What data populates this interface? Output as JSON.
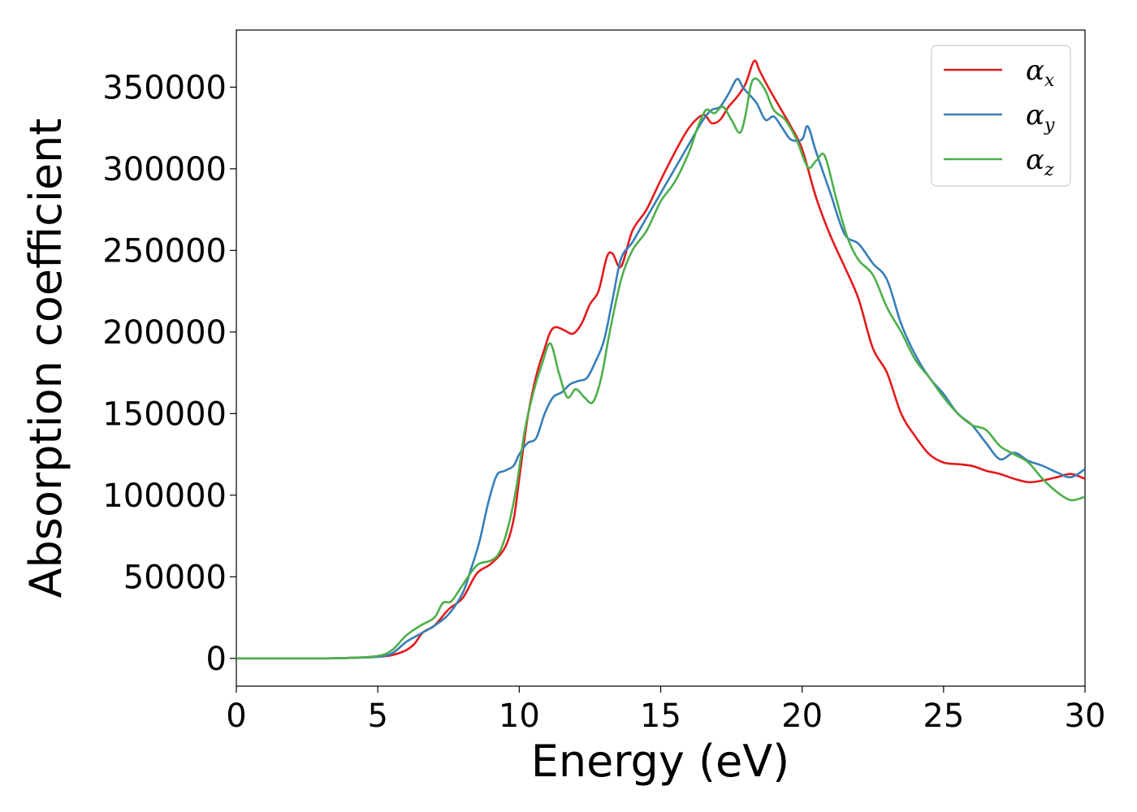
{
  "chart_data": {
    "type": "line",
    "title": "",
    "xlabel": "Energy (eV)",
    "ylabel": "Absorption coefficient",
    "xlim": [
      0,
      30
    ],
    "ylim": [
      -17000,
      385000
    ],
    "xticks": [
      0,
      5,
      10,
      15,
      20,
      25,
      30
    ],
    "yticks": [
      0,
      50000,
      100000,
      150000,
      200000,
      250000,
      300000,
      350000
    ],
    "grid": false,
    "legend": "top-right",
    "series": [
      {
        "name": "α_x",
        "name_base": "α",
        "name_sub": "x",
        "color": "#e41a1c",
        "x": [
          0,
          3,
          4,
          5,
          5.5,
          6,
          6.3,
          6.6,
          7,
          7.5,
          8,
          8.5,
          9,
          9.5,
          9.8,
          10,
          10.3,
          10.6,
          10.9,
          11.1,
          11.3,
          11.6,
          11.9,
          12.2,
          12.5,
          12.8,
          13.1,
          13.3,
          13.6,
          14,
          14.5,
          15,
          15.5,
          16,
          16.5,
          16.8,
          17.1,
          17.4,
          17.7,
          18,
          18.3,
          18.5,
          18.8,
          19.2,
          19.6,
          20,
          20.5,
          21,
          21.5,
          22,
          22.5,
          23,
          23.5,
          24,
          24.5,
          25,
          25.5,
          26,
          26.5,
          27,
          27.5,
          28,
          28.5,
          29,
          29.5,
          30
        ],
        "y": [
          0,
          0,
          300,
          1000,
          2000,
          5000,
          9000,
          16000,
          20000,
          30000,
          37000,
          52000,
          58000,
          68000,
          85000,
          110000,
          148000,
          173000,
          190000,
          200000,
          203000,
          201000,
          199000,
          205000,
          217000,
          225000,
          246000,
          248000,
          240000,
          262000,
          275000,
          293000,
          310000,
          325000,
          333000,
          328000,
          330000,
          338000,
          344000,
          352000,
          366000,
          360000,
          350000,
          338000,
          326000,
          312000,
          282000,
          259000,
          240000,
          220000,
          190000,
          175000,
          150000,
          136000,
          125000,
          120000,
          119000,
          118000,
          115000,
          113000,
          110000,
          108000,
          109000,
          111000,
          113000,
          110000
        ]
      },
      {
        "name": "α_y",
        "name_base": "α",
        "name_sub": "y",
        "color": "#377eb8",
        "x": [
          0,
          3,
          4,
          5,
          5.5,
          6,
          6.5,
          7,
          7.5,
          8,
          8.3,
          8.6,
          8.9,
          9.2,
          9.5,
          9.8,
          10,
          10.3,
          10.6,
          10.9,
          11.2,
          11.5,
          11.8,
          12.1,
          12.4,
          12.7,
          13,
          13.3,
          13.6,
          14,
          14.5,
          15,
          15.5,
          16,
          16.5,
          16.8,
          17.1,
          17.4,
          17.7,
          17.9,
          18.1,
          18.4,
          18.7,
          19,
          19.3,
          19.6,
          20,
          20.2,
          20.5,
          21,
          21.5,
          22,
          22.5,
          23,
          23.5,
          24,
          24.5,
          25,
          25.5,
          26,
          26.5,
          27,
          27.5,
          28,
          28.5,
          29,
          29.5,
          30
        ],
        "y": [
          0,
          0,
          300,
          1000,
          3000,
          10000,
          15000,
          20000,
          27000,
          40000,
          55000,
          72000,
          95000,
          112000,
          115000,
          118000,
          125000,
          132000,
          135000,
          150000,
          160000,
          163000,
          168000,
          170000,
          172000,
          182000,
          195000,
          220000,
          245000,
          255000,
          270000,
          285000,
          300000,
          315000,
          330000,
          336000,
          338000,
          346000,
          355000,
          350000,
          346000,
          340000,
          330000,
          332000,
          325000,
          318000,
          318000,
          326000,
          310000,
          285000,
          260000,
          254000,
          242000,
          232000,
          205000,
          186000,
          172000,
          162000,
          150000,
          143000,
          132000,
          122000,
          126000,
          121000,
          118000,
          114000,
          111000,
          116000
        ]
      },
      {
        "name": "α_z",
        "name_base": "α",
        "name_sub": "z",
        "color": "#4daf4a",
        "x": [
          0,
          3,
          4,
          5,
          5.5,
          6,
          6.5,
          7,
          7.3,
          7.6,
          8,
          8.5,
          9,
          9.3,
          9.6,
          9.9,
          10.2,
          10.5,
          10.8,
          11.1,
          11.4,
          11.7,
          12,
          12.3,
          12.6,
          12.9,
          13.2,
          13.6,
          14,
          14.5,
          15,
          15.5,
          16,
          16.3,
          16.6,
          16.9,
          17.2,
          17.5,
          17.8,
          18,
          18.2,
          18.4,
          18.7,
          19,
          19.4,
          19.8,
          20.2,
          20.5,
          20.8,
          21.2,
          21.6,
          22,
          22.5,
          23,
          23.5,
          24,
          24.5,
          25,
          25.5,
          26,
          26.5,
          27,
          27.5,
          28,
          28.5,
          29,
          29.5,
          30
        ],
        "y": [
          0,
          0,
          300,
          1500,
          5000,
          14000,
          20000,
          25000,
          34000,
          35000,
          45000,
          57000,
          60000,
          65000,
          80000,
          105000,
          140000,
          163000,
          180000,
          193000,
          175000,
          160000,
          165000,
          160000,
          157000,
          172000,
          200000,
          232000,
          250000,
          262000,
          280000,
          292000,
          310000,
          325000,
          336000,
          334000,
          338000,
          330000,
          322000,
          333000,
          352000,
          355000,
          348000,
          336000,
          330000,
          318000,
          301000,
          305000,
          308000,
          282000,
          258000,
          244000,
          235000,
          215000,
          200000,
          183000,
          172000,
          160000,
          150000,
          143000,
          140000,
          130000,
          125000,
          120000,
          110000,
          102000,
          97000,
          99000
        ]
      }
    ]
  }
}
